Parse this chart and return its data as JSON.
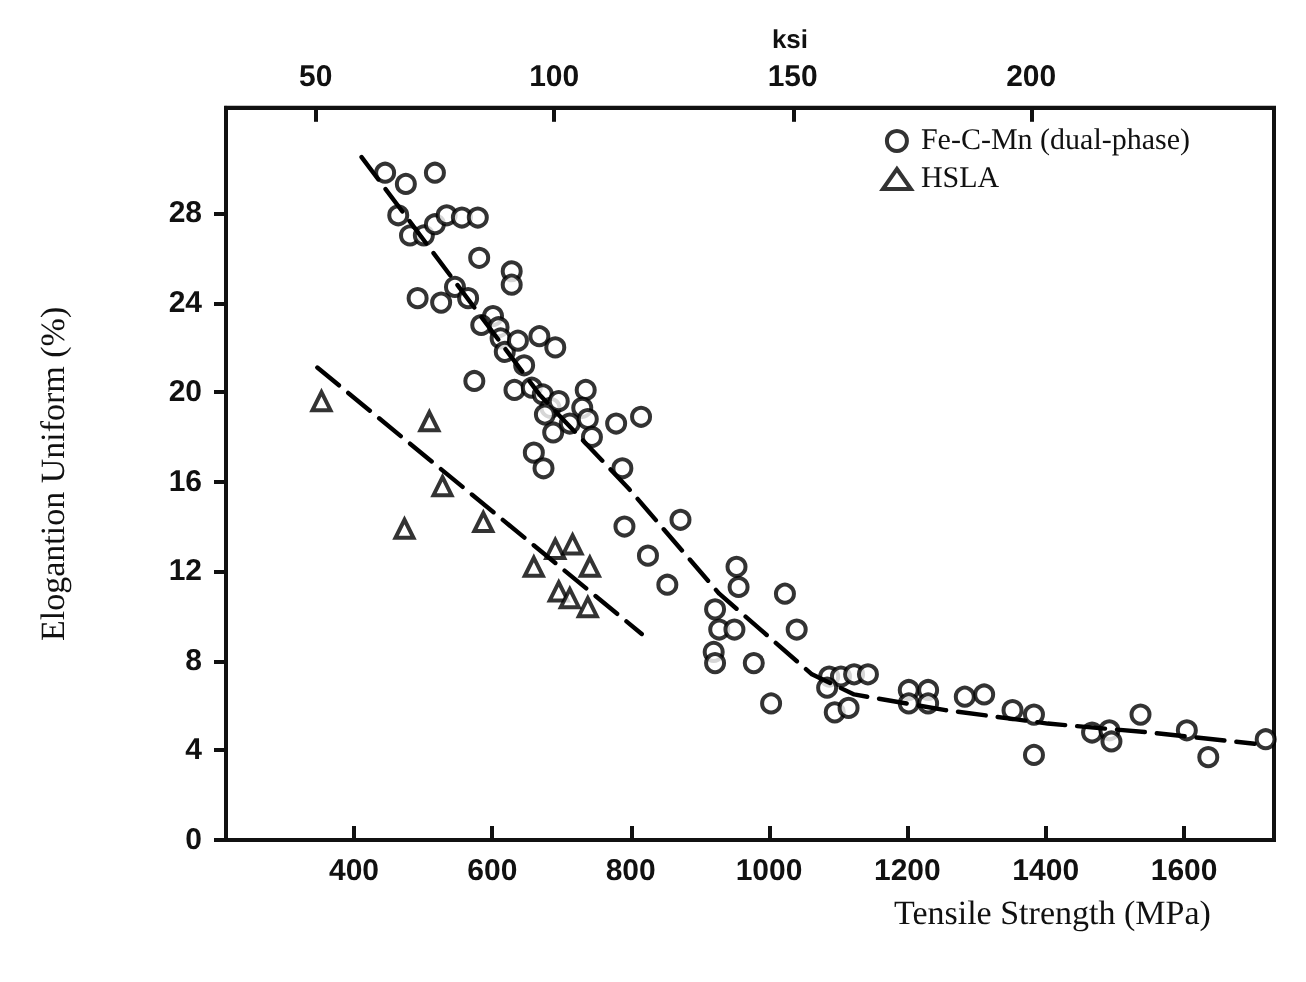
{
  "chart_data": {
    "type": "scatter",
    "xlabel": "Tensile Strength (MPa)",
    "ylabel": "Elogantion Uniform (%)",
    "x2label": "ksi",
    "xlim": [
      215,
      1730
    ],
    "ylim": [
      0,
      32.7
    ],
    "xticks": [
      400,
      600,
      800,
      1000,
      1200,
      1400,
      1600
    ],
    "yticks": [
      0,
      4,
      8,
      12,
      16,
      20,
      24,
      28
    ],
    "x2lim": [
      31.2,
      250.9
    ],
    "x2ticks": [
      50,
      100,
      150,
      200
    ],
    "grid": false,
    "legend": "top right",
    "series": [
      {
        "name": "Fe-C-Mn (dual-phase)",
        "color": "#000000",
        "marker": "circle",
        "x": [
          445,
          475,
          517,
          464,
          481,
          501,
          517,
          534,
          556,
          579,
          581,
          492,
          526,
          546,
          565,
          628,
          628,
          574,
          601,
          584,
          609,
          612,
          618,
          637,
          646,
          632,
          668,
          691,
          657,
          673,
          684,
          696,
          676,
          688,
          712,
          735,
          730,
          738,
          744,
          779,
          815,
          660,
          674,
          788,
          791,
          872,
          825,
          853,
          953,
          956,
          1023,
          922,
          928,
          950,
          920,
          922,
          978,
          1040,
          1003,
          1087,
          1104,
          1123,
          1143,
          1084,
          1095,
          1115,
          1202,
          1202,
          1230,
          1230,
          1283,
          1311,
          1352,
          1383,
          1383,
          1467,
          1492,
          1495,
          1537,
          1604,
          1635,
          1718
        ],
        "values": [
          29.8,
          29.3,
          29.8,
          27.9,
          27.0,
          27.0,
          27.5,
          27.9,
          27.8,
          27.8,
          26.0,
          24.2,
          24.0,
          24.7,
          24.2,
          25.4,
          24.8,
          20.5,
          23.4,
          23.0,
          22.9,
          22.4,
          21.8,
          22.3,
          21.2,
          20.1,
          22.5,
          22.0,
          20.2,
          19.9,
          19.3,
          19.6,
          19.0,
          18.2,
          18.6,
          20.1,
          19.3,
          18.8,
          18.0,
          18.6,
          18.9,
          17.3,
          16.6,
          16.6,
          14.0,
          14.3,
          12.7,
          11.4,
          12.2,
          11.3,
          11.0,
          10.3,
          9.4,
          9.4,
          8.4,
          7.9,
          7.9,
          9.4,
          6.1,
          7.3,
          7.3,
          7.4,
          7.4,
          6.8,
          5.7,
          5.9,
          6.7,
          6.1,
          6.7,
          6.1,
          6.4,
          6.5,
          5.8,
          5.6,
          3.8,
          4.8,
          4.9,
          4.4,
          5.6,
          4.9,
          3.7,
          4.5
        ]
      },
      {
        "name": "HSLA",
        "color": "#000000",
        "marker": "triangle",
        "x": [
          353,
          509,
          528,
          473,
          587,
          660,
          691,
          716,
          741,
          696,
          712,
          738
        ],
        "values": [
          19.6,
          18.7,
          15.8,
          13.9,
          14.2,
          12.2,
          13.0,
          13.2,
          12.2,
          11.1,
          10.8,
          10.4
        ]
      },
      {
        "type": "line",
        "color": "#000000",
        "marker": "none",
        "line_style": "dashed",
        "x": [
          411,
          668,
          797,
          928,
          1062,
          1123,
          1255,
          1403,
          1551,
          1702
        ],
        "values": [
          30.5,
          19.9,
          15.7,
          11.0,
          7.4,
          6.5,
          5.8,
          5.2,
          4.8,
          4.3
        ]
      },
      {
        "type": "line",
        "color": "#000000",
        "marker": "none",
        "line_style": "dashed",
        "x": [
          347,
          816
        ],
        "values": [
          21.1,
          9.2
        ]
      }
    ]
  }
}
